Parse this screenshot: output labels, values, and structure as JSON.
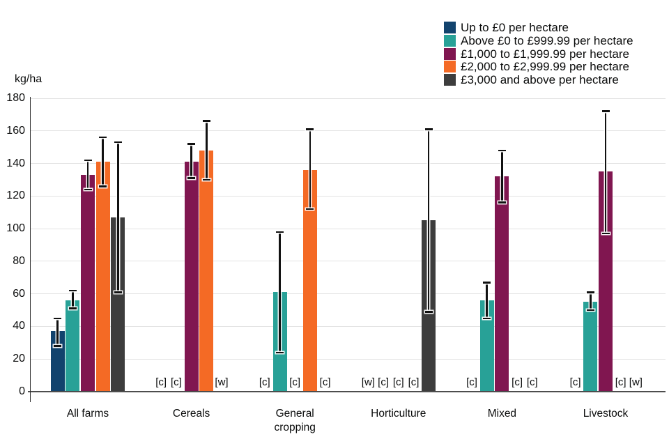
{
  "chart_data": {
    "type": "bar",
    "title": "",
    "unit_label": "kg/ha",
    "xlabel": "",
    "ylabel": "kg/ha",
    "ylim": [
      0,
      180
    ],
    "yticks": [
      0,
      20,
      40,
      60,
      80,
      100,
      120,
      140,
      160,
      180
    ],
    "grid": "horizontal",
    "legend_position": "top-right",
    "error_bars": true,
    "suppression_notes": {
      "c": "[c]",
      "w": "[w]"
    },
    "categories": [
      "All farms",
      "Cereals",
      "General\ncropping",
      "Horticulture",
      "Mixed",
      "Livestock"
    ],
    "series": [
      {
        "name": "Up to £0 per hectare",
        "color": "#12436D",
        "points": [
          {
            "value": 37,
            "ci": [
              28,
              45
            ]
          },
          {
            "flag": "[c]"
          },
          {
            "flag": "[c]"
          },
          {
            "flag": "[w]"
          },
          {
            "flag": "[c]"
          },
          {
            "flag": "[c]"
          }
        ]
      },
      {
        "name": "Above £0 to £999.99 per hectare",
        "color": "#28A197",
        "points": [
          {
            "value": 56,
            "ci": [
              51,
              62
            ]
          },
          {
            "flag": "[c]"
          },
          {
            "value": 61,
            "ci": [
              24,
              98
            ]
          },
          {
            "flag": "[c]"
          },
          {
            "value": 56,
            "ci": [
              45,
              67
            ]
          },
          {
            "value": 55,
            "ci": [
              50,
              61
            ]
          }
        ]
      },
      {
        "name": "£1,000 to £1,999.99 per hectare",
        "color": "#801650",
        "points": [
          {
            "value": 133,
            "ci": [
              124,
              142
            ]
          },
          {
            "value": 141,
            "ci": [
              131,
              152
            ]
          },
          {
            "flag": "[c]"
          },
          {
            "flag": "[c]"
          },
          {
            "value": 132,
            "ci": [
              116,
              148
            ]
          },
          {
            "value": 135,
            "ci": [
              97,
              172
            ]
          }
        ]
      },
      {
        "name": "£2,000 to £2,999.99 per hectare",
        "color": "#F46A25",
        "points": [
          {
            "value": 141,
            "ci": [
              126,
              156
            ]
          },
          {
            "value": 148,
            "ci": [
              130,
              166
            ]
          },
          {
            "value": 136,
            "ci": [
              112,
              161
            ]
          },
          {
            "flag": "[c]"
          },
          {
            "flag": "[c]"
          },
          {
            "flag": "[c]"
          }
        ]
      },
      {
        "name": "£3,000 and above per hectare",
        "color": "#3D3D3D",
        "points": [
          {
            "value": 107,
            "ci": [
              61,
              153
            ]
          },
          {
            "flag": "[w]"
          },
          {
            "flag": "[c]"
          },
          {
            "value": 105,
            "ci": [
              49,
              161
            ]
          },
          {
            "flag": "[c]"
          },
          {
            "flag": "[w]"
          }
        ]
      }
    ]
  }
}
